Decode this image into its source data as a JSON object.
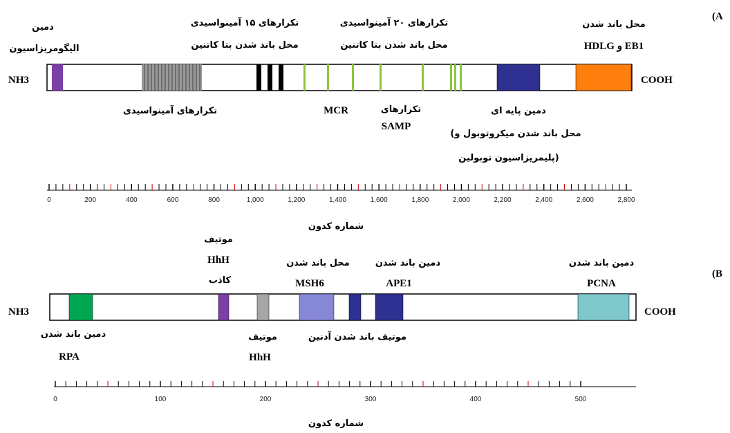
{
  "panel_a": {
    "letter": "(A",
    "n_terminus": "NH3",
    "c_terminus": "COOH",
    "labels": {
      "oligomerization_1": "دمین",
      "oligomerization_2": "الیگومریزاسیون",
      "rep15_1": "تکرارهای ۱۵ آمینواسیدی",
      "rep15_2": "محل باند شدن بتا کاتنین",
      "rep20_1": "تکرارهای ۲۰ آمینواسیدی",
      "rep20_2": "محل باند شدن بتا کاتنین",
      "eb1_1": "محل باند شدن",
      "eb1_2": "HDLG و EB1",
      "aa_repeats": "تکرارهای آمینواسیدی",
      "mcr": "MCR",
      "samp_1": "تکرارهای",
      "samp_2": "SAMP",
      "basic_1": "دمین پایه ای",
      "basic_2": "(محل باند شدن میکروتوبول و",
      "basic_3": "پلیمریزاسیون توبولین)"
    },
    "axis_title": "شماره کدون",
    "axis_ticks": [
      "0",
      "200",
      "400",
      "600",
      "800",
      "1,000",
      "1,200",
      "1,400",
      "1,600",
      "1,800",
      "2,000",
      "2,200",
      "2,400",
      "2,600",
      "2,800"
    ]
  },
  "panel_b": {
    "letter": "(B",
    "n_terminus": "NH3",
    "c_terminus": "COOH",
    "labels": {
      "hhh_fake_1": "موتیف",
      "hhh_fake_2": "HhH",
      "hhh_fake_3": "کاذب",
      "msh6_1": "محل باند شدن",
      "msh6_2": "MSH6",
      "ape1_1": "دمین باند شدن",
      "ape1_2": "APE1",
      "pcna_1": "دمین باند شدن",
      "pcna_2": "PCNA",
      "rpa_1": "دمین باند شدن",
      "rpa_2": "RPA",
      "hhh_1": "موتیف",
      "hhh_2": "HhH",
      "adenine": "موتیف باند شدن آدنین"
    },
    "axis_title": "شماره کدون",
    "axis_ticks": [
      "0",
      "100",
      "200",
      "300",
      "400",
      "500"
    ]
  },
  "colors": {
    "oligomerization": "#7b3fa8",
    "eb1_hdlg": "#ff7f0e",
    "basic_domain": "#2e3192",
    "rep15": "#000000",
    "rep20": "#8bc53f",
    "aa_repeats": "#999999",
    "rpa": "#00a651",
    "hhh_fake": "#7b3fa8",
    "hhh": "#a6a6a6",
    "msh6": "#8787d8",
    "adenine": "#2e3192",
    "ape1": "#2e3192",
    "pcna": "#7fc8cc",
    "minor_tick": "#cc0000"
  }
}
